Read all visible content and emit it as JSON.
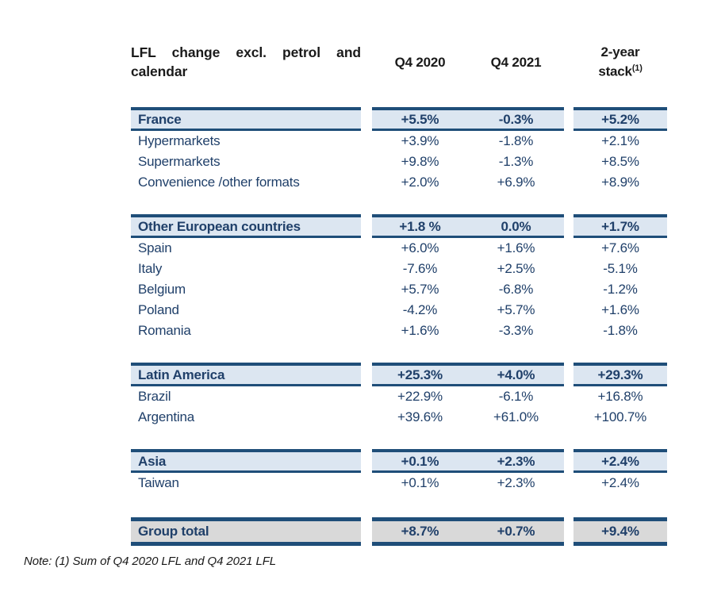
{
  "table": {
    "title": "LFL change excl. petrol and calendar",
    "columns": [
      "Q4 2020",
      "Q4 2021"
    ],
    "stack_column": {
      "line1": "2-year",
      "line2": "stack",
      "superscript": "(1)"
    },
    "sections": [
      {
        "header": {
          "label": "France",
          "values": [
            "+5.5%",
            "-0.3%",
            "+5.2%"
          ]
        },
        "rows": [
          {
            "label": "Hypermarkets",
            "values": [
              "+3.9%",
              "-1.8%",
              "+2.1%"
            ]
          },
          {
            "label": "Supermarkets",
            "values": [
              "+9.8%",
              "-1.3%",
              "+8.5%"
            ]
          },
          {
            "label": "Convenience /other formats",
            "values": [
              "+2.0%",
              "+6.9%",
              "+8.9%"
            ]
          }
        ]
      },
      {
        "header": {
          "label": "Other European countries",
          "values": [
            "+1.8 %",
            "0.0%",
            "+1.7%"
          ]
        },
        "rows": [
          {
            "label": "Spain",
            "values": [
              "+6.0%",
              "+1.6%",
              "+7.6%"
            ]
          },
          {
            "label": "Italy",
            "values": [
              "-7.6%",
              "+2.5%",
              "-5.1%"
            ]
          },
          {
            "label": "Belgium",
            "values": [
              "+5.7%",
              "-6.8%",
              "-1.2%"
            ]
          },
          {
            "label": "Poland",
            "values": [
              "-4.2%",
              "+5.7%",
              "+1.6%"
            ]
          },
          {
            "label": "Romania",
            "values": [
              "+1.6%",
              "-3.3%",
              "-1.8%"
            ]
          }
        ]
      },
      {
        "header": {
          "label": "Latin America",
          "values": [
            "+25.3%",
            "+4.0%",
            "+29.3%"
          ]
        },
        "rows": [
          {
            "label": "Brazil",
            "values": [
              "+22.9%",
              "-6.1%",
              "+16.8%"
            ]
          },
          {
            "label": "Argentina",
            "values": [
              "+39.6%",
              "+61.0%",
              "+100.7%"
            ]
          }
        ]
      },
      {
        "header": {
          "label": "Asia",
          "values": [
            "+0.1%",
            "+2.3%",
            "+2.4%"
          ]
        },
        "rows": [
          {
            "label": "Taiwan",
            "values": [
              "+0.1%",
              "+2.3%",
              "+2.4%"
            ]
          }
        ]
      }
    ],
    "total": {
      "label": "Group total",
      "values": [
        "+8.7%",
        "+0.7%",
        "+9.4%"
      ]
    }
  },
  "note": "Note: (1) Sum of Q4 2020 LFL and Q4 2021 LFL",
  "colors": {
    "navy_border": "#1f4e79",
    "navy_text": "#20406a",
    "section_fill": "#dce6f1",
    "total_fill": "#d9d9d9",
    "header_text": "#1a1a1a"
  }
}
